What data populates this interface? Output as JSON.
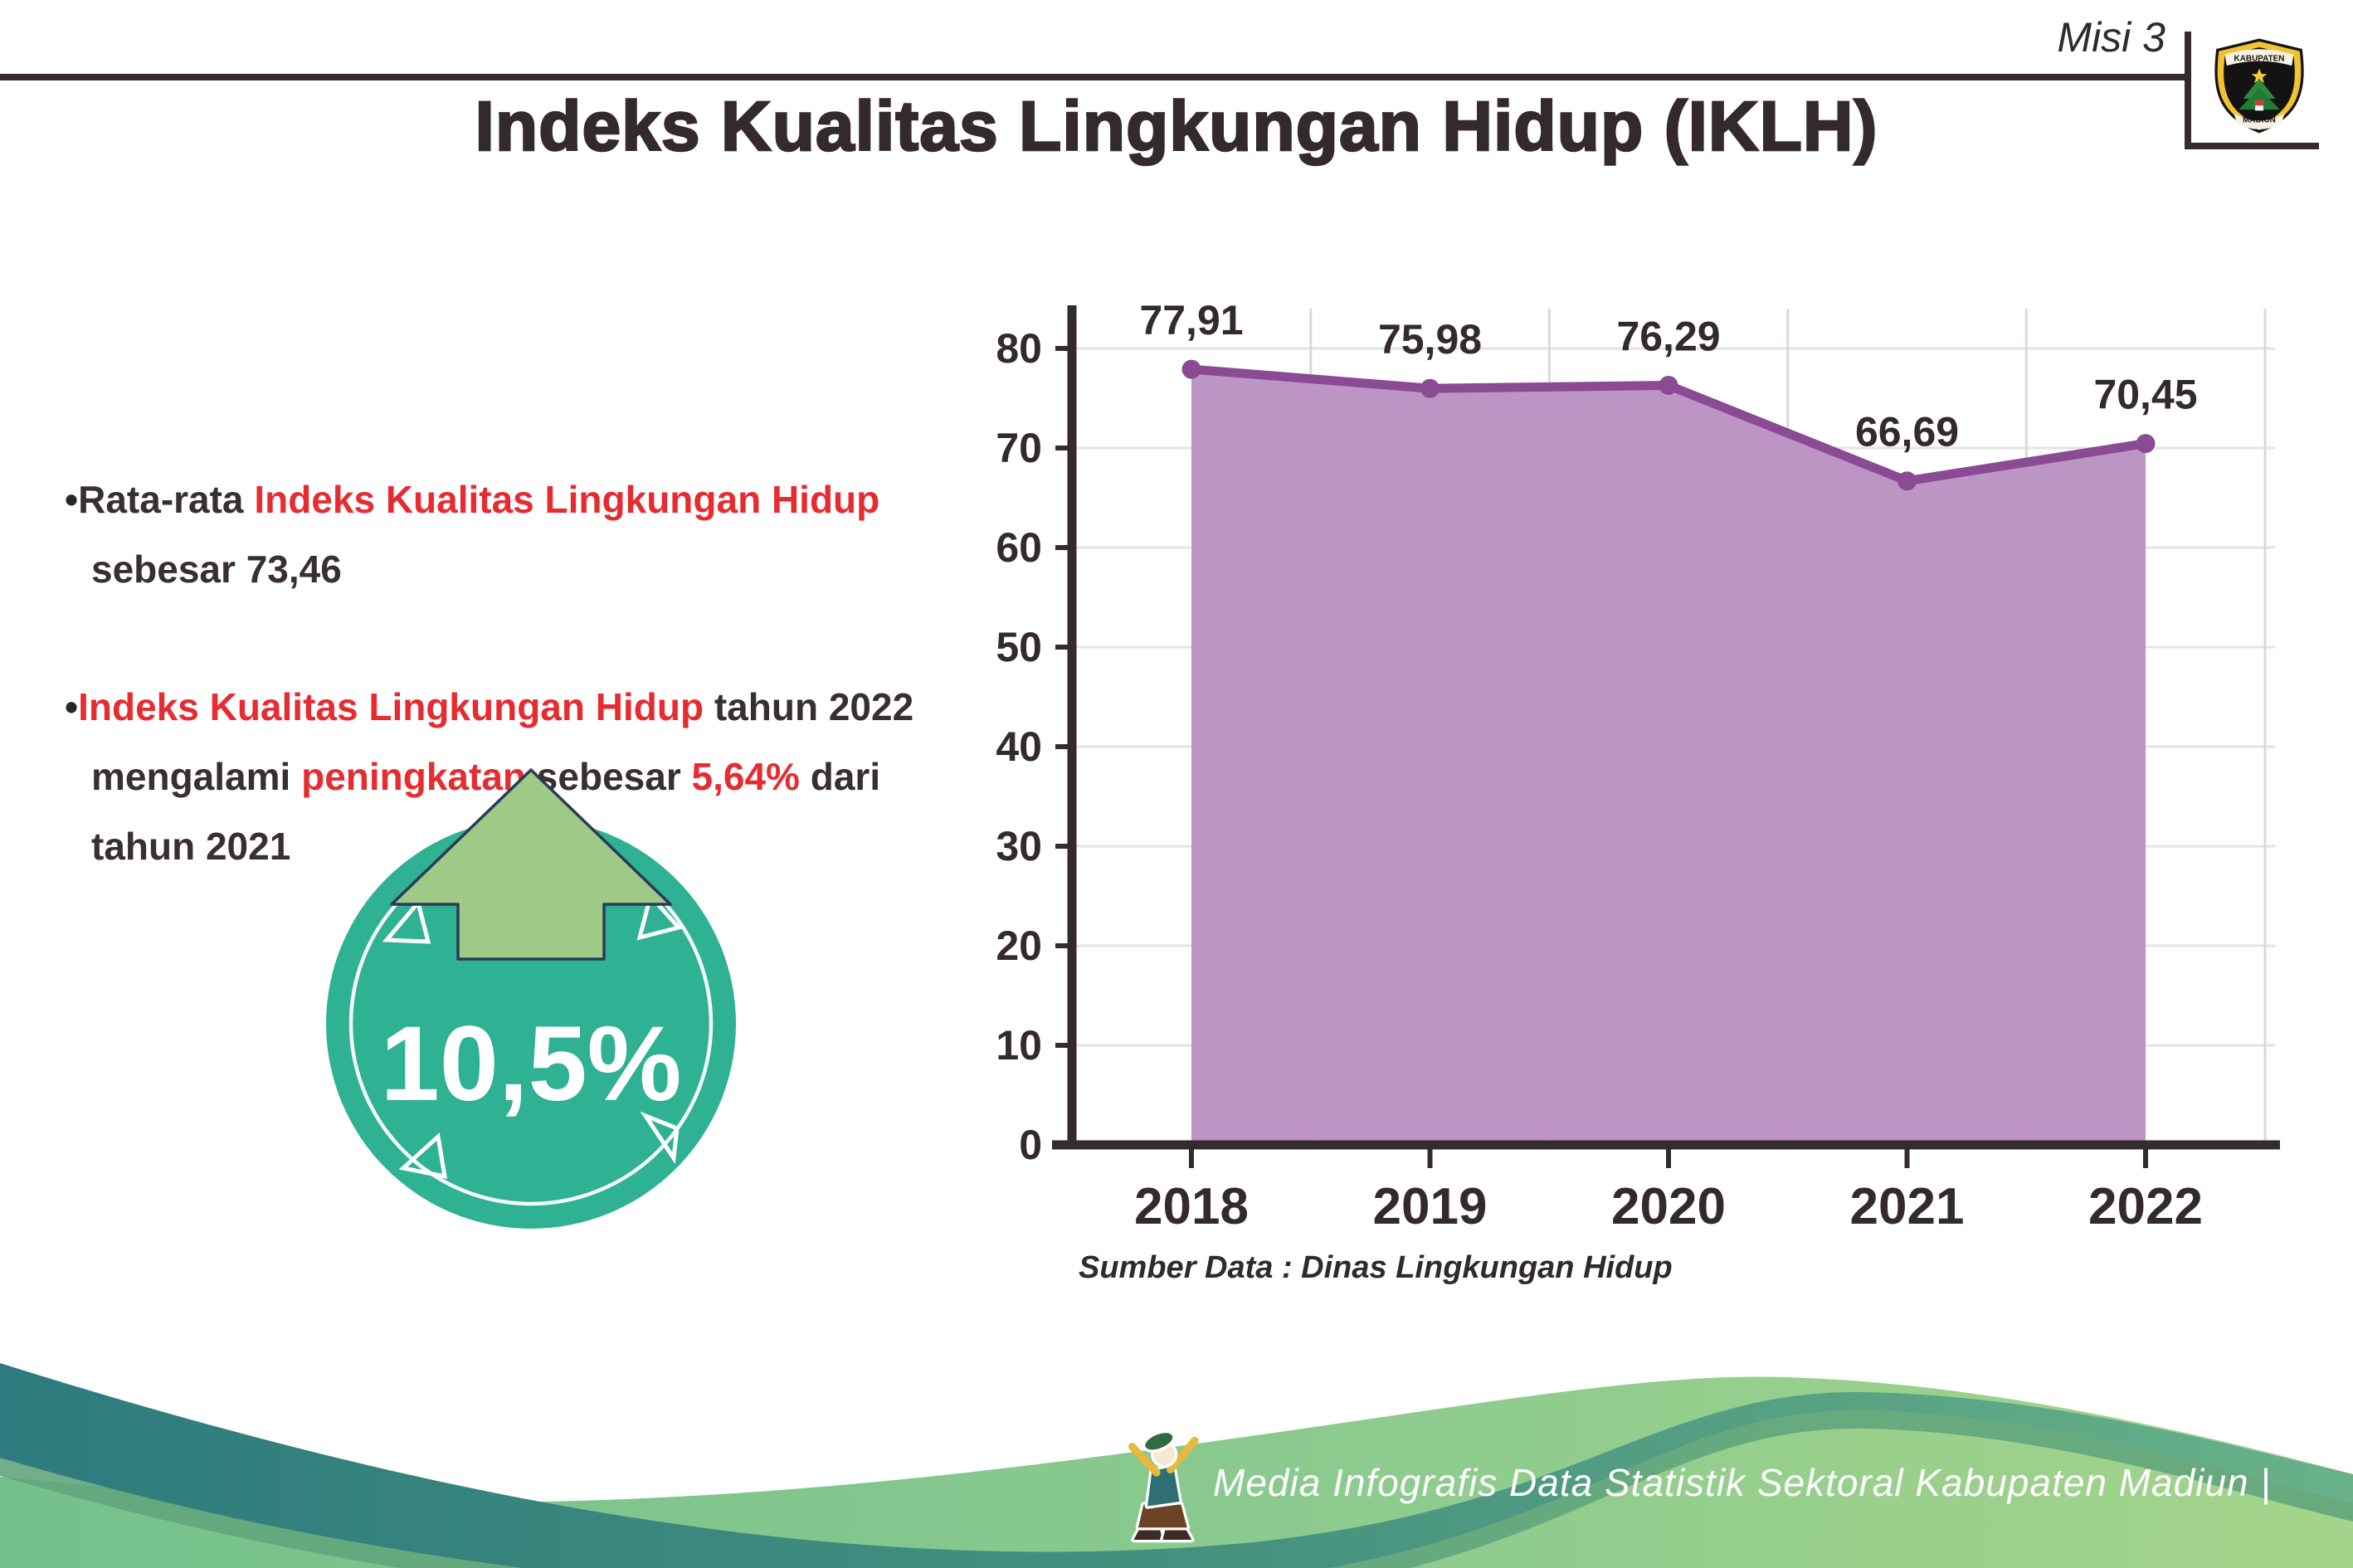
{
  "palette": {
    "red_accent": "#e62b31",
    "dark_text": "#38302f",
    "title_color": "#342a2c",
    "badge_teal": "#2fb194",
    "badge_arrow_green": "#9fc986",
    "badge_arrow_outline": "#2b3a56",
    "wave_teal_dark": "#2d7b7e",
    "wave_teal_light": "#68b189",
    "wave_green_left": "#74c08c",
    "wave_green_right": "#a4d48b",
    "chart_area_purple": "#b78cc0",
    "chart_line_purple": "#8a4a94"
  },
  "header": {
    "misi": "Misi 3",
    "title": "Indeks Kualitas Lingkungan Hidup (IKLH)",
    "logo_top": "KABUPATEN",
    "logo_bottom": "MADIUN"
  },
  "bullets": {
    "bullet_char": "•",
    "item1": {
      "l1r1": "Rata-rata ",
      "l1r2": "Indeks Kualitas Lingkungan Hidup",
      "l2r1": "sebesar 73,46"
    },
    "item2": {
      "l1r1": "Indeks Kualitas Lingkungan Hidup",
      "l1r2": " tahun 2022",
      "l2r1": "mengalami ",
      "l2r2": "peningkatan",
      "l2r3": " sebesar ",
      "l2r4": "5,64%",
      "l2r5": " dari",
      "l3r1": "tahun 2021"
    }
  },
  "badge": {
    "value": "10,5%"
  },
  "chart_data": {
    "type": "area",
    "title": "",
    "categories": [
      "2018",
      "2019",
      "2020",
      "2021",
      "2022"
    ],
    "values": [
      77.91,
      75.98,
      76.29,
      66.69,
      70.45
    ],
    "value_labels": [
      "77,91",
      "75,98",
      "76,29",
      "66,69",
      "70,45"
    ],
    "ylim": [
      0,
      84
    ],
    "yticks": [
      0,
      10,
      20,
      30,
      40,
      50,
      60,
      70,
      80
    ],
    "grid": true,
    "legend": "none",
    "source_note": "Sumber Data : Dinas Lingkungan Hidup",
    "colors": {
      "area": "#b78cc0",
      "line": "#8a4a94",
      "marker": "#8a4a94",
      "label": "#332a2c",
      "axis": "#332b2d",
      "grid_h": "#e6e3e3",
      "grid_v": "#dcd8d8",
      "tick_text": "#332a2c",
      "source_text": "#2f2a2b"
    }
  },
  "footer": {
    "credit": "Media Infografis Data Statistik Sektoral Kabupaten Madiun |"
  }
}
